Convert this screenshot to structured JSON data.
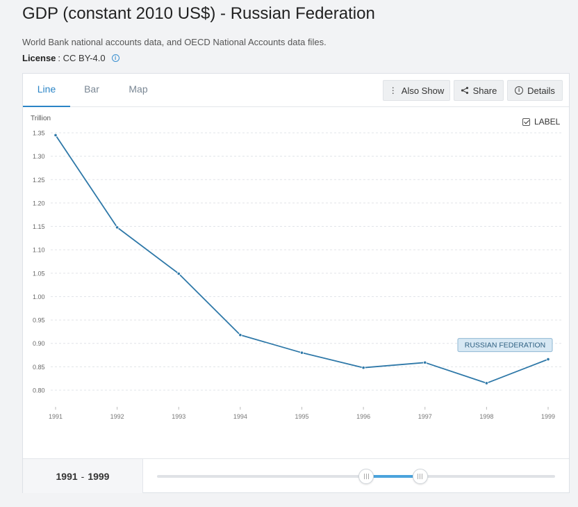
{
  "header": {
    "title": "GDP (constant 2010 US$) - Russian Federation",
    "source": "World Bank national accounts data, and OECD National Accounts data files.",
    "license_label": "License",
    "license_value": ": CC BY-4.0"
  },
  "tabs": [
    {
      "label": "Line",
      "active": true
    },
    {
      "label": "Bar",
      "active": false
    },
    {
      "label": "Map",
      "active": false
    }
  ],
  "toolbar": {
    "also_show": "Also Show",
    "share": "Share",
    "details": "Details"
  },
  "label_toggle": {
    "text": "LABEL",
    "checked": true
  },
  "range": {
    "start": "1991",
    "separator": "-",
    "end": "1999"
  },
  "slider": {
    "track_range": [
      1960,
      2019
    ],
    "selected": [
      1991,
      1999
    ]
  },
  "colors": {
    "series": "#2e78a8",
    "accent": "#2a84c6"
  },
  "chart_data": {
    "type": "line",
    "title": "",
    "xlabel": "",
    "ylabel": "Trillion",
    "x": [
      1991,
      1992,
      1993,
      1994,
      1995,
      1996,
      1997,
      1998,
      1999
    ],
    "xticks": [
      "1991",
      "1992",
      "1993",
      "1994",
      "1995",
      "1996",
      "1997",
      "1998",
      "1999"
    ],
    "yticks": [
      "1.35",
      "1.30",
      "1.25",
      "1.20",
      "1.15",
      "1.10",
      "1.05",
      "1.00",
      "0.95",
      "0.90",
      "0.85",
      "0.80"
    ],
    "ylim": [
      0.78,
      1.37
    ],
    "grid": true,
    "series": [
      {
        "name": "RUSSIAN FEDERATION",
        "values": [
          1.345,
          1.148,
          1.049,
          0.918,
          0.88,
          0.848,
          0.859,
          0.815,
          0.866
        ]
      }
    ]
  }
}
